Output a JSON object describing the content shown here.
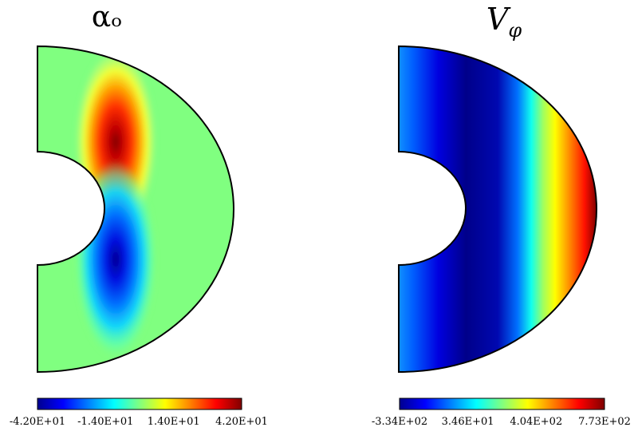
{
  "chart_data": [
    {
      "type": "heatmap",
      "title": "αₒ",
      "geometry": "meridional half-annulus (spherical shell, right half)",
      "field_structure": "antisymmetric about the equator: maximum (positive) lobe in the northern hemisphere near the inner boundary, minimum (negative) lobe in the southern hemisphere; background value near 0 elsewhere",
      "colormap": "jet",
      "colorbar": {
        "min": -42.0,
        "max": 42.0,
        "tick_values": [
          -42.0,
          -14.0,
          14.0,
          42.0
        ],
        "tick_labels": [
          "-4.20E+01",
          "-1.40E+01",
          "1.40E+01",
          "4.20E+01"
        ]
      }
    },
    {
      "type": "heatmap",
      "title_base": "V",
      "title_sub": "φ",
      "geometry": "meridional half-annulus (spherical shell, right half)",
      "field_structure": "stratified in cylindrical radius: minimum band at mid radius (dark blue), increasing outward to maximum (dark red) at the outer equatorial edge",
      "colormap": "jet",
      "colorbar": {
        "min": -334.0,
        "max": 773.0,
        "tick_values": [
          -334.0,
          34.6,
          404.0,
          773.0
        ],
        "tick_labels": [
          "-3.34E+02",
          "3.46E+01",
          "4.04E+02",
          "7.73E+02"
        ]
      }
    }
  ]
}
